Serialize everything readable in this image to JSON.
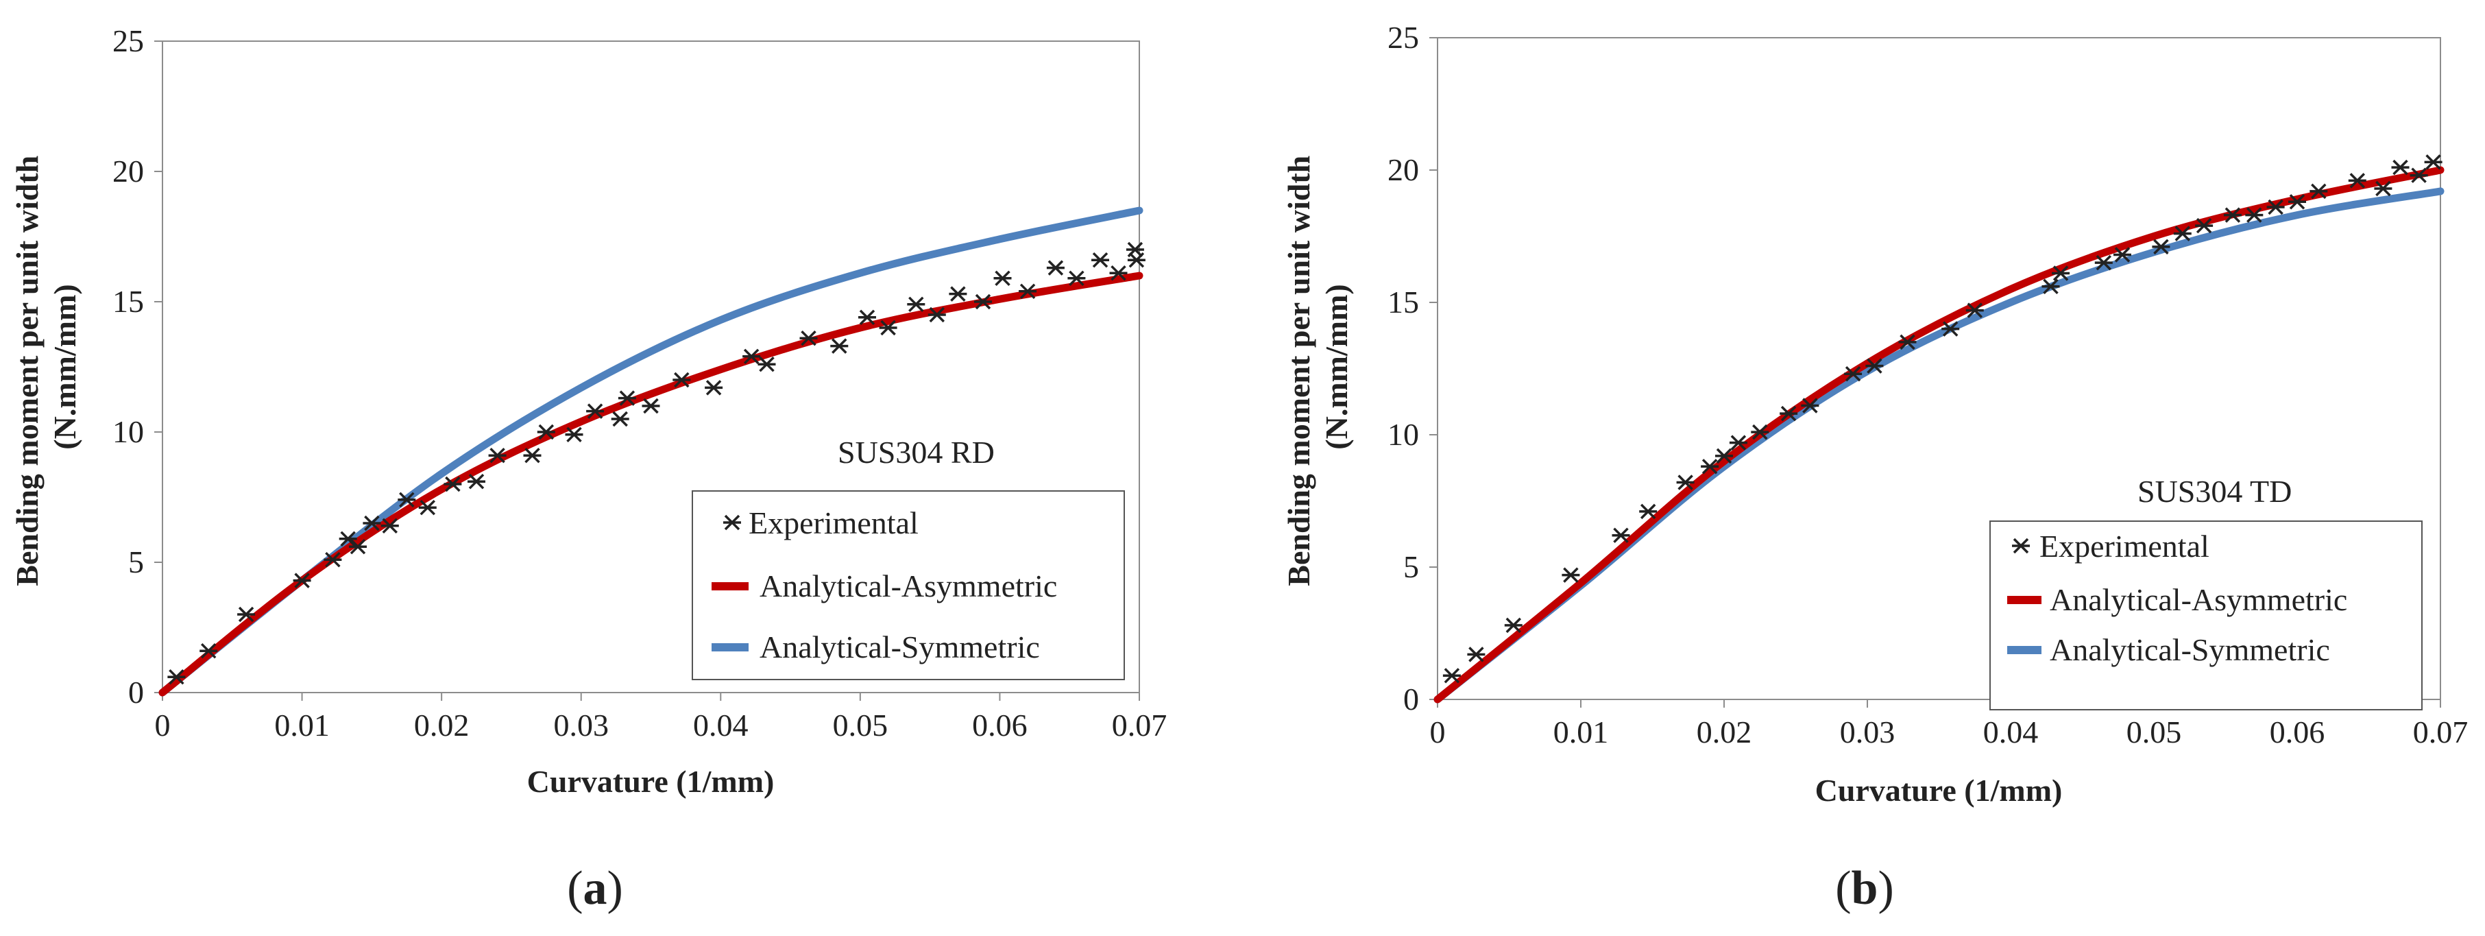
{
  "figure": {
    "panels": [
      {
        "label_open": "(",
        "label": "a",
        "label_close": ")"
      },
      {
        "label_open": "(",
        "label": "b",
        "label_close": ")"
      }
    ]
  },
  "chart_data": [
    {
      "type": "line",
      "title": "",
      "annotation": "SUS304 RD",
      "xlabel": "Curvature (1/mm)",
      "ylabel": "Bending moment per unit width (N.mm/mm)",
      "ylabel_lines": [
        "Bending moment per unit width",
        "(N.mm/mm)"
      ],
      "xlim": [
        0,
        0.07
      ],
      "ylim": [
        0,
        25
      ],
      "xticks": [
        0,
        0.01,
        0.02,
        0.03,
        0.04,
        0.05,
        0.06,
        0.07
      ],
      "xtick_labels": [
        "0",
        "0.01",
        "0.02",
        "0.03",
        "0.04",
        "0.05",
        "0.06",
        "0.07"
      ],
      "yticks": [
        0,
        5,
        10,
        15,
        20,
        25
      ],
      "ytick_labels": [
        "0",
        "5",
        "10",
        "15",
        "20",
        "25"
      ],
      "legend": [
        "Experimental",
        "Analytical-Asymmetric",
        "Analytical-Symmetric"
      ],
      "colors": {
        "asymmetric": "#c00000",
        "symmetric": "#4f81bd",
        "experimental": "#222222"
      },
      "series": [
        {
          "name": "Experimental",
          "marker": "asterisk",
          "x": [
            0.001,
            0.0033,
            0.006,
            0.01,
            0.0122,
            0.0133,
            0.014,
            0.015,
            0.0163,
            0.0175,
            0.019,
            0.0208,
            0.0225,
            0.024,
            0.0265,
            0.0275,
            0.0295,
            0.031,
            0.0328,
            0.0333,
            0.035,
            0.0372,
            0.0395,
            0.0422,
            0.0433,
            0.0463,
            0.0485,
            0.0505,
            0.052,
            0.054,
            0.0555,
            0.057,
            0.0588,
            0.0602,
            0.062,
            0.064,
            0.0655,
            0.0672,
            0.0685,
            0.0697,
            0.0698
          ],
          "y": [
            0.6,
            1.6,
            3.0,
            4.3,
            5.1,
            5.9,
            5.6,
            6.5,
            6.4,
            7.4,
            7.1,
            8.0,
            8.1,
            9.1,
            9.1,
            10.0,
            9.9,
            10.8,
            10.5,
            11.3,
            11.0,
            12.0,
            11.7,
            12.9,
            12.6,
            13.6,
            13.3,
            14.4,
            14.0,
            14.9,
            14.5,
            15.3,
            15.0,
            15.9,
            15.4,
            16.3,
            15.9,
            16.6,
            16.1,
            17.0,
            16.6
          ]
        },
        {
          "name": "Analytical-Asymmetric",
          "x": [
            0,
            0.01,
            0.02,
            0.03,
            0.04,
            0.05,
            0.06,
            0.07
          ],
          "y": [
            0,
            4.3,
            7.8,
            10.4,
            12.4,
            14.0,
            15.1,
            16.0
          ]
        },
        {
          "name": "Analytical-Symmetric",
          "x": [
            0,
            0.01,
            0.02,
            0.03,
            0.04,
            0.05,
            0.06,
            0.07
          ],
          "y": [
            0,
            4.3,
            8.4,
            11.7,
            14.3,
            16.1,
            17.4,
            18.5
          ]
        }
      ]
    },
    {
      "type": "line",
      "title": "",
      "annotation": "SUS304 TD",
      "xlabel": "Curvature (1/mm)",
      "ylabel": "Bending moment per unit width (N.mm/mm)",
      "ylabel_lines": [
        "Bending moment per unit width",
        "(N.mm/mm)"
      ],
      "xlim": [
        0,
        0.07
      ],
      "ylim": [
        0,
        25
      ],
      "xticks": [
        0,
        0.01,
        0.02,
        0.03,
        0.04,
        0.05,
        0.06,
        0.07
      ],
      "xtick_labels": [
        "0",
        "0.01",
        "0.02",
        "0.03",
        "0.04",
        "0.05",
        "0.06",
        "0.07"
      ],
      "yticks": [
        0,
        5,
        10,
        15,
        20,
        25
      ],
      "ytick_labels": [
        "0",
        "5",
        "10",
        "15",
        "20",
        "25"
      ],
      "legend": [
        "Experimental",
        "Analytical-Asymmetric",
        "Analytical-Symmetric"
      ],
      "colors": {
        "asymmetric": "#c00000",
        "symmetric": "#4f81bd",
        "experimental": "#222222"
      },
      "series": [
        {
          "name": "Experimental",
          "marker": "asterisk",
          "x": [
            0.001,
            0.0027,
            0.0053,
            0.0093,
            0.0128,
            0.0147,
            0.0173,
            0.019,
            0.02,
            0.021,
            0.0225,
            0.0245,
            0.026,
            0.029,
            0.0305,
            0.0328,
            0.0358,
            0.0375,
            0.0428,
            0.0435,
            0.0465,
            0.0478,
            0.0505,
            0.052,
            0.0535,
            0.0555,
            0.057,
            0.0585,
            0.06,
            0.0615,
            0.0642,
            0.066,
            0.0672,
            0.0685,
            0.0695
          ],
          "y": [
            0.9,
            1.7,
            2.8,
            4.7,
            6.2,
            7.1,
            8.2,
            8.8,
            9.2,
            9.7,
            10.1,
            10.8,
            11.1,
            12.3,
            12.6,
            13.5,
            14.0,
            14.7,
            15.6,
            16.1,
            16.5,
            16.8,
            17.1,
            17.6,
            17.9,
            18.3,
            18.3,
            18.6,
            18.8,
            19.2,
            19.6,
            19.3,
            20.1,
            19.8,
            20.3
          ]
        },
        {
          "name": "Analytical-Asymmetric",
          "x": [
            0,
            0.01,
            0.02,
            0.03,
            0.04,
            0.05,
            0.06,
            0.07
          ],
          "y": [
            0,
            4.4,
            9.0,
            12.7,
            15.5,
            17.5,
            18.9,
            20.0
          ]
        },
        {
          "name": "Analytical-Symmetric",
          "x": [
            0,
            0.01,
            0.02,
            0.03,
            0.04,
            0.05,
            0.06,
            0.07
          ],
          "y": [
            0,
            4.3,
            8.8,
            12.4,
            15.0,
            16.9,
            18.3,
            19.2
          ]
        }
      ]
    }
  ]
}
